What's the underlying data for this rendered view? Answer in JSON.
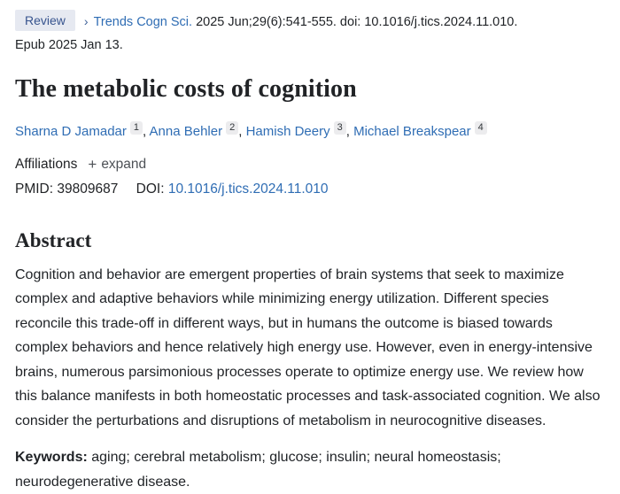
{
  "citation": {
    "badge_label": "Review",
    "chevron": "›",
    "journal": "Trends Cogn Sci.",
    "citation_text": "2025 Jun;29(6):541-555. doi: 10.1016/j.tics.2024.11.010.",
    "epub": "Epub 2025 Jan 13."
  },
  "title": "The metabolic costs of cognition",
  "authors": [
    {
      "name": "Sharna D Jamadar",
      "sup": "1"
    },
    {
      "name": "Anna Behler",
      "sup": "2"
    },
    {
      "name": "Hamish Deery",
      "sup": "3"
    },
    {
      "name": "Michael Breakspear",
      "sup": "4"
    }
  ],
  "affiliations": {
    "label": "Affiliations",
    "expand_icon": "+",
    "expand_label": "expand"
  },
  "identifiers": {
    "pmid_label": "PMID:",
    "pmid_value": "39809687",
    "doi_label": "DOI:",
    "doi_value": "10.1016/j.tics.2024.11.010"
  },
  "abstract": {
    "heading": "Abstract",
    "text": "Cognition and behavior are emergent properties of brain systems that seek to maximize complex and adaptive behaviors while minimizing energy utilization. Different species reconcile this trade-off in different ways, but in humans the outcome is biased towards complex behaviors and hence relatively high energy use. However, even in energy-intensive brains, numerous parsimonious processes operate to optimize energy use. We review how this balance manifests in both homeostatic processes and task-associated cognition. We also consider the perturbations and disruptions of metabolism in neurocognitive diseases."
  },
  "keywords": {
    "label": "Keywords:",
    "text": " aging; cerebral metabolism; glucose; insulin; neural homeostasis; neurodegenerative disease."
  },
  "colors": {
    "link_blue": "#2f6db4",
    "badge_background": "#e6e9f1",
    "badge_text": "#37548e",
    "superscript_background": "#ececee",
    "body_text": "#1f2226"
  }
}
